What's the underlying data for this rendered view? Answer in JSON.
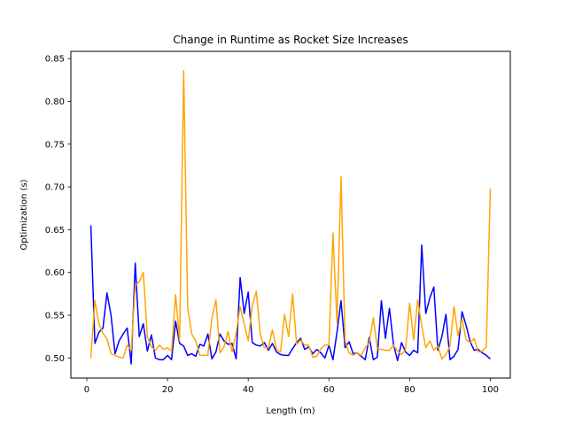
{
  "chart_data": {
    "type": "line",
    "title": "Change in Runtime as Rocket Size Increases",
    "xlabel": "Length (m)",
    "ylabel": "Optimization (s)",
    "xlim": [
      -3.95,
      104.95
    ],
    "ylim": [
      0.4765,
      0.8585
    ],
    "xticks": [
      0,
      20,
      40,
      60,
      80,
      100
    ],
    "yticks": [
      0.5,
      0.55,
      0.6,
      0.65,
      0.7,
      0.75,
      0.8,
      0.85
    ],
    "ytick_labels": [
      "0.50",
      "0.55",
      "0.60",
      "0.65",
      "0.70",
      "0.75",
      "0.80",
      "0.85"
    ],
    "grid": false,
    "legend": "none",
    "x": [
      1,
      2,
      3,
      4,
      5,
      6,
      7,
      8,
      9,
      10,
      11,
      12,
      13,
      14,
      15,
      16,
      17,
      18,
      19,
      20,
      21,
      22,
      23,
      24,
      25,
      26,
      27,
      28,
      29,
      30,
      31,
      32,
      33,
      34,
      35,
      36,
      37,
      38,
      39,
      40,
      41,
      42,
      43,
      44,
      45,
      46,
      47,
      48,
      49,
      50,
      51,
      52,
      53,
      54,
      55,
      56,
      57,
      58,
      59,
      60,
      61,
      62,
      63,
      64,
      65,
      66,
      67,
      68,
      69,
      70,
      71,
      72,
      73,
      74,
      75,
      76,
      77,
      78,
      79,
      80,
      81,
      82,
      83,
      84,
      85,
      86,
      87,
      88,
      89,
      90,
      91,
      92,
      93,
      94,
      95,
      96,
      97,
      98,
      99,
      100
    ],
    "series": [
      {
        "color": "#0000ff",
        "values": [
          0.655,
          0.517,
          0.53,
          0.535,
          0.576,
          0.55,
          0.505,
          0.52,
          0.528,
          0.535,
          0.493,
          0.611,
          0.525,
          0.54,
          0.508,
          0.527,
          0.5,
          0.498,
          0.498,
          0.503,
          0.498,
          0.543,
          0.517,
          0.514,
          0.503,
          0.505,
          0.502,
          0.516,
          0.514,
          0.528,
          0.499,
          0.507,
          0.528,
          0.52,
          0.516,
          0.517,
          0.499,
          0.594,
          0.552,
          0.577,
          0.518,
          0.515,
          0.514,
          0.518,
          0.509,
          0.517,
          0.507,
          0.504,
          0.503,
          0.503,
          0.511,
          0.518,
          0.523,
          0.51,
          0.513,
          0.505,
          0.51,
          0.506,
          0.5,
          0.515,
          0.498,
          0.53,
          0.567,
          0.512,
          0.519,
          0.505,
          0.506,
          0.502,
          0.498,
          0.524,
          0.498,
          0.501,
          0.567,
          0.523,
          0.558,
          0.516,
          0.497,
          0.518,
          0.507,
          0.503,
          0.509,
          0.506,
          0.632,
          0.552,
          0.57,
          0.583,
          0.509,
          0.525,
          0.551,
          0.498,
          0.502,
          0.51,
          0.554,
          0.538,
          0.519,
          0.509,
          0.51,
          0.506,
          0.503,
          0.499
        ]
      },
      {
        "color": "#ffa500",
        "values": [
          0.5,
          0.567,
          0.54,
          0.529,
          0.522,
          0.505,
          0.503,
          0.501,
          0.5,
          0.515,
          0.509,
          0.585,
          0.589,
          0.6,
          0.525,
          0.513,
          0.509,
          0.515,
          0.51,
          0.512,
          0.508,
          0.574,
          0.52,
          0.836,
          0.558,
          0.528,
          0.52,
          0.503,
          0.503,
          0.503,
          0.547,
          0.568,
          0.506,
          0.513,
          0.531,
          0.507,
          0.529,
          0.56,
          0.54,
          0.52,
          0.561,
          0.578,
          0.528,
          0.512,
          0.512,
          0.533,
          0.51,
          0.507,
          0.551,
          0.525,
          0.575,
          0.516,
          0.521,
          0.515,
          0.515,
          0.501,
          0.502,
          0.511,
          0.515,
          0.515,
          0.646,
          0.541,
          0.712,
          0.52,
          0.506,
          0.503,
          0.506,
          0.503,
          0.512,
          0.518,
          0.547,
          0.511,
          0.51,
          0.509,
          0.509,
          0.515,
          0.508,
          0.504,
          0.51,
          0.564,
          0.521,
          0.568,
          0.538,
          0.512,
          0.52,
          0.509,
          0.514,
          0.499,
          0.504,
          0.514,
          0.56,
          0.526,
          0.546,
          0.521,
          0.518,
          0.523,
          0.507,
          0.508,
          0.513,
          0.698
        ]
      }
    ]
  }
}
